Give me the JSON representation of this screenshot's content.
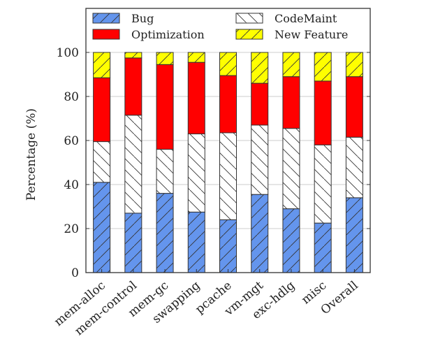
{
  "chart_data": {
    "type": "bar",
    "stacked": true,
    "title": "",
    "xlabel": "",
    "ylabel": "Percentage (%)",
    "ylim": [
      0,
      120
    ],
    "yticks": [
      0,
      20,
      40,
      60,
      80,
      100
    ],
    "legend_position": "top",
    "grid": true,
    "categories": [
      "mem-alloc",
      "mem-control",
      "mem-gc",
      "swapping",
      "pcache",
      "vm-mgt",
      "exc-hdlg",
      "misc",
      "Overall"
    ],
    "series": [
      {
        "name": "Bug",
        "color": "#6495ED",
        "pattern": "forward-diagonal",
        "values": [
          41,
          27,
          36,
          27.5,
          24,
          35.5,
          29,
          22.5,
          34
        ]
      },
      {
        "name": "CodeMaint",
        "color": "#ffffff",
        "pattern": "back-diagonal",
        "values": [
          18.5,
          44.5,
          20,
          35.5,
          39.5,
          31.5,
          36.5,
          35.5,
          27.5
        ]
      },
      {
        "name": "Optimization",
        "color": "#FF0000",
        "pattern": "none",
        "values": [
          29,
          26,
          38.5,
          32.5,
          26,
          19,
          23.5,
          29,
          27.5
        ]
      },
      {
        "name": "New Feature",
        "color": "#FFFF00",
        "pattern": "forward-diagonal",
        "values": [
          11.5,
          2.5,
          5.5,
          4.5,
          10.5,
          14,
          11,
          13,
          11
        ]
      }
    ]
  }
}
